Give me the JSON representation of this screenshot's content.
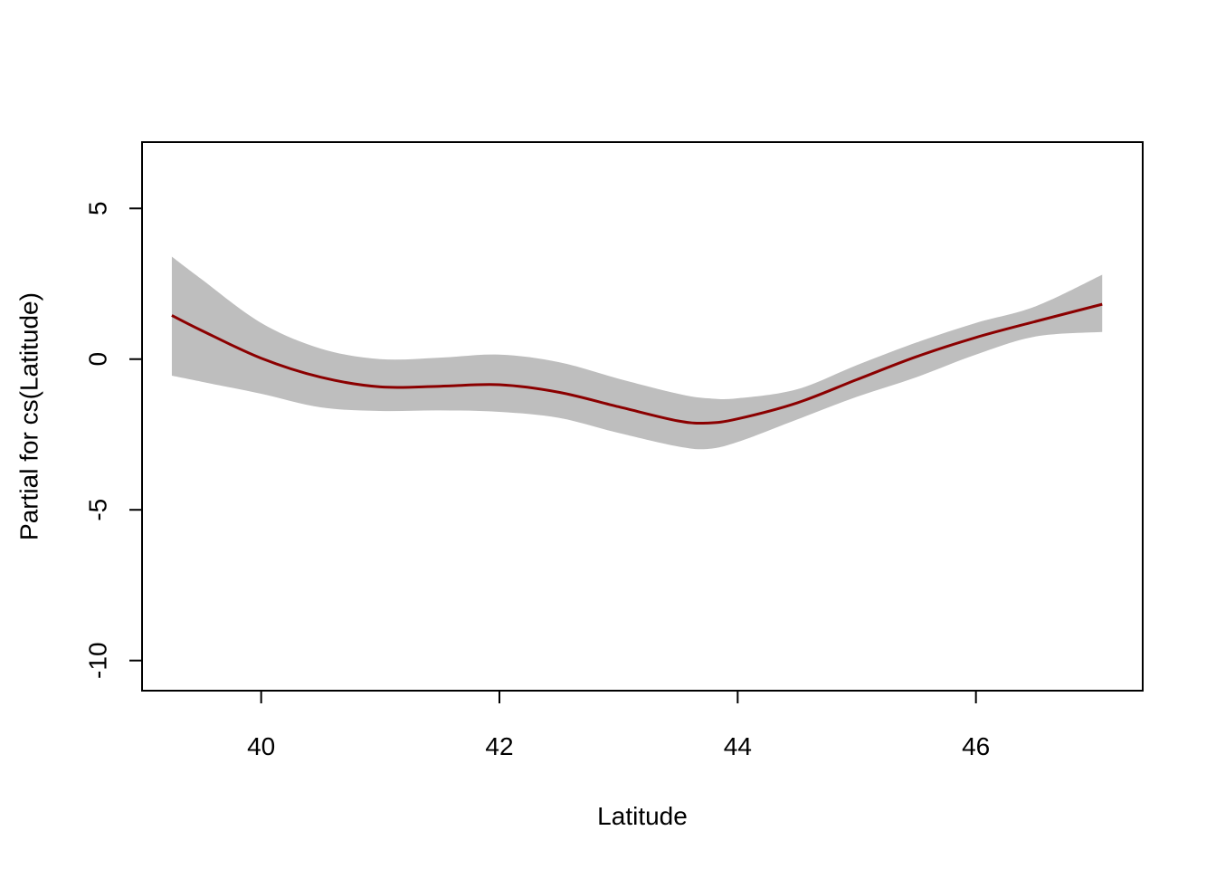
{
  "chart_data": {
    "type": "line",
    "title": "",
    "xlabel": "Latitude",
    "ylabel": "Partial for cs(Latitude)",
    "xlim": [
      39.0,
      47.4
    ],
    "ylim": [
      -11.0,
      7.2
    ],
    "xticks": [
      40,
      42,
      44,
      46
    ],
    "xtick_labels": [
      "40",
      "42",
      "44",
      "46"
    ],
    "yticks": [
      -10,
      -5,
      0,
      5
    ],
    "ytick_labels": [
      "-10",
      "-5",
      "0",
      "5"
    ],
    "grid": false,
    "legend": "none",
    "colors": {
      "line": "#8B0000",
      "band": "#BEBEBE",
      "axis": "#000000"
    },
    "x": [
      39.25,
      39.5,
      40.0,
      40.5,
      41.0,
      41.5,
      42.0,
      42.5,
      43.0,
      43.5,
      43.75,
      44.0,
      44.5,
      45.0,
      45.5,
      46.0,
      46.5,
      47.06
    ],
    "series": [
      {
        "role": "fit",
        "values": [
          1.45,
          0.95,
          0.03,
          -0.6,
          -0.92,
          -0.9,
          -0.85,
          -1.1,
          -1.58,
          -2.05,
          -2.12,
          -1.98,
          -1.45,
          -0.68,
          0.08,
          0.72,
          1.25,
          1.82
        ]
      },
      {
        "role": "upper",
        "values": [
          3.4,
          2.65,
          1.2,
          0.35,
          0.0,
          0.05,
          0.15,
          -0.1,
          -0.65,
          -1.15,
          -1.3,
          -1.3,
          -1.0,
          -0.2,
          0.55,
          1.2,
          1.75,
          2.8
        ]
      },
      {
        "role": "lower",
        "values": [
          -0.55,
          -0.75,
          -1.15,
          -1.6,
          -1.72,
          -1.7,
          -1.75,
          -1.95,
          -2.45,
          -2.9,
          -2.98,
          -2.75,
          -2.0,
          -1.25,
          -0.6,
          0.15,
          0.75,
          0.9
        ]
      }
    ]
  }
}
